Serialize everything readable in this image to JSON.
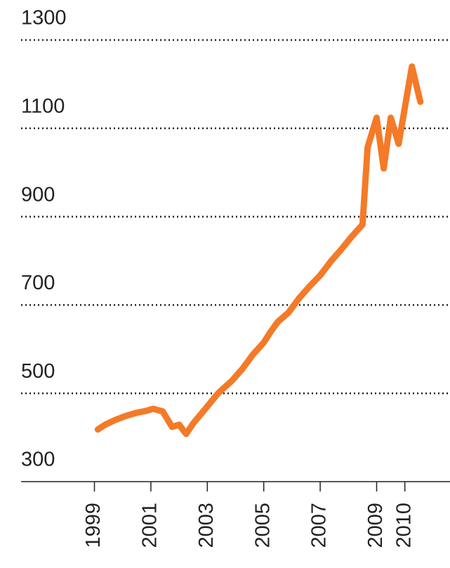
{
  "chart_data": {
    "type": "line",
    "x": [
      1999.12,
      1999.38,
      1999.75,
      2000.12,
      2000.5,
      2000.88,
      2001.08,
      2001.42,
      2001.75,
      2002.0,
      2002.25,
      2002.5,
      2002.88,
      2003.38,
      2003.88,
      2004.25,
      2004.62,
      2005.0,
      2005.25,
      2005.5,
      2005.88,
      2006.25,
      2006.62,
      2007.0,
      2007.38,
      2007.75,
      2008.12,
      2008.5,
      2008.68,
      2009.0,
      2009.25,
      2009.5,
      2009.78,
      2010.25,
      2010.55
    ],
    "series": [
      {
        "color": "#f47a28",
        "values": [
          418,
          429,
          440,
          449,
          456,
          461,
          465,
          459,
          424,
          429,
          408,
          432,
          461,
          500,
          529,
          556,
          588,
          615,
          640,
          662,
          683,
          715,
          742,
          767,
          799,
          826,
          855,
          882,
          1057,
          1124,
          1009,
          1124,
          1065,
          1240,
          1160
        ]
      }
    ],
    "xlim": [
      1996.4,
      2011.6
    ],
    "xticks": [
      1999,
      2001,
      2003,
      2005,
      2007,
      2009,
      2010
    ],
    "ylim": [
      300,
      1300
    ],
    "yticks": [
      300,
      500,
      700,
      900,
      1100,
      1300
    ],
    "grid": true
  }
}
